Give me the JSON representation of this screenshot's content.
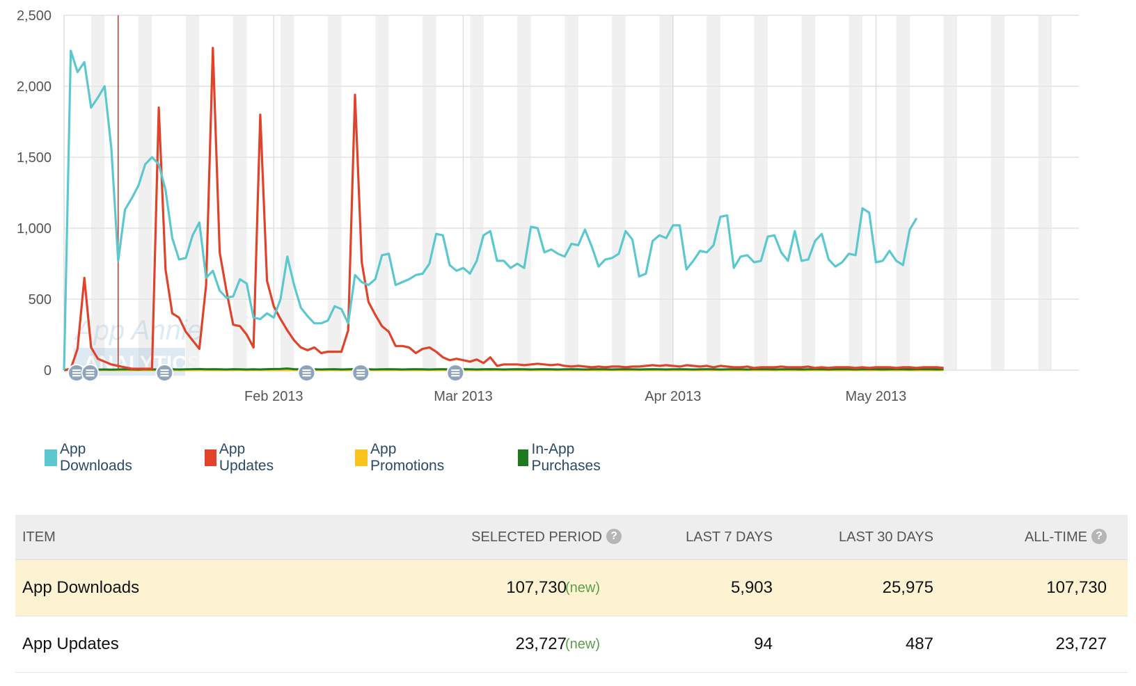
{
  "chart_data": {
    "type": "line",
    "x_start": "2013-01-01",
    "x_end": "2013-05-31",
    "ylim": [
      0,
      2500
    ],
    "yticks": [
      0,
      500,
      1000,
      1500,
      2000,
      2500
    ],
    "ytick_labels": [
      "0",
      "500",
      "1,000",
      "1,500",
      "2,000",
      "2,500"
    ],
    "xtick_labels": [
      {
        "date": "2013-02-01",
        "label": "Feb 2013"
      },
      {
        "date": "2013-03-01",
        "label": "Mar 2013"
      },
      {
        "date": "2013-04-01",
        "label": "Apr 2013"
      },
      {
        "date": "2013-05-01",
        "label": "May 2013"
      }
    ],
    "grid": true,
    "weekend_bands": true,
    "marker_line_date": "2013-01-09",
    "annotation_dates": [
      "2013-01-01",
      "2013-01-03",
      "2013-01-14",
      "2013-02-04",
      "2013-02-12",
      "2013-02-26"
    ],
    "watermark": [
      "App Annie",
      "ANALYTICS"
    ],
    "series": [
      {
        "name": "App Downloads",
        "color": "#5bc8d0",
        "values": [
          0,
          2250,
          2100,
          2170,
          1850,
          1920,
          2000,
          1560,
          770,
          1130,
          1210,
          1300,
          1450,
          1500,
          1450,
          1270,
          930,
          780,
          790,
          950,
          1040,
          650,
          700,
          560,
          510,
          520,
          640,
          610,
          370,
          360,
          400,
          370,
          500,
          800,
          600,
          440,
          380,
          330,
          330,
          350,
          450,
          430,
          330,
          670,
          620,
          600,
          640,
          810,
          820,
          600,
          620,
          640,
          670,
          680,
          750,
          960,
          950,
          740,
          700,
          720,
          680,
          770,
          950,
          980,
          770,
          770,
          720,
          750,
          720,
          1010,
          1000,
          830,
          850,
          820,
          800,
          890,
          880,
          990,
          870,
          730,
          780,
          790,
          820,
          980,
          920,
          660,
          680,
          910,
          950,
          930,
          1020,
          1020,
          710,
          770,
          840,
          830,
          880,
          1080,
          1090,
          720,
          800,
          810,
          760,
          770,
          940,
          950,
          830,
          770,
          980,
          770,
          780,
          910,
          960,
          780,
          730,
          760,
          820,
          810,
          1140,
          1110,
          760,
          770,
          840,
          770,
          740,
          990,
          1070
        ]
      },
      {
        "name": "App Updates",
        "color": "#e0432a",
        "values": [
          0,
          10,
          150,
          650,
          160,
          80,
          60,
          40,
          30,
          20,
          10,
          10,
          10,
          10,
          1850,
          710,
          400,
          370,
          270,
          210,
          150,
          600,
          2270,
          830,
          560,
          320,
          310,
          250,
          160,
          1800,
          630,
          450,
          360,
          280,
          210,
          160,
          140,
          160,
          120,
          130,
          130,
          130,
          280,
          1940,
          760,
          480,
          390,
          310,
          270,
          170,
          170,
          160,
          120,
          150,
          160,
          130,
          90,
          70,
          80,
          70,
          60,
          75,
          50,
          90,
          30,
          40,
          40,
          40,
          35,
          40,
          45,
          40,
          35,
          40,
          30,
          25,
          30,
          25,
          20,
          25,
          20,
          25,
          25,
          20,
          25,
          25,
          30,
          35,
          30,
          35,
          30,
          25,
          35,
          30,
          25,
          30,
          20,
          30,
          25,
          20,
          20,
          25,
          15,
          20,
          20,
          20,
          25,
          20,
          20,
          20,
          25,
          15,
          20,
          15,
          20,
          20,
          20,
          15,
          20,
          15,
          20,
          20,
          20,
          15,
          20,
          20,
          15,
          20,
          20,
          20,
          15
        ]
      },
      {
        "name": "App Promotions",
        "color": "#fcc21e",
        "values": [
          0,
          0,
          0,
          0,
          0,
          0,
          0,
          0,
          0,
          0,
          0,
          0,
          0,
          0,
          0,
          0,
          0,
          0,
          0,
          0,
          0,
          0,
          0,
          0,
          0,
          0,
          0,
          0,
          0,
          0,
          0,
          0,
          0,
          0,
          0,
          0,
          0,
          0,
          0,
          0,
          0,
          0,
          0,
          0,
          0,
          0,
          0,
          0,
          0,
          0,
          0,
          0,
          0,
          0,
          0,
          0,
          0,
          0,
          0,
          0,
          0,
          0,
          0,
          0,
          0,
          0,
          0,
          0,
          0,
          0,
          0,
          0,
          0,
          0,
          0,
          0,
          0,
          0,
          0,
          0,
          0,
          0,
          0,
          0,
          0,
          0,
          0,
          0,
          0,
          0,
          0,
          0,
          0,
          0,
          0,
          0,
          0,
          0,
          0,
          0,
          0,
          0,
          0,
          0,
          0,
          0,
          0,
          0,
          0,
          0,
          0,
          0,
          0,
          0,
          0,
          0,
          0,
          0,
          0,
          0,
          0,
          0,
          0,
          0,
          0,
          0,
          0,
          0,
          0,
          0,
          0
        ]
      },
      {
        "name": "In-App Purchases",
        "color": "#1f7a1f",
        "values": [
          0,
          5,
          4,
          6,
          5,
          4,
          5,
          4,
          5,
          6,
          5,
          4,
          6,
          5,
          5,
          7,
          6,
          5,
          6,
          7,
          8,
          6,
          7,
          6,
          5,
          7,
          6,
          5,
          6,
          5,
          7,
          8,
          9,
          12,
          7,
          6,
          5,
          6,
          5,
          6,
          7,
          5,
          6,
          8,
          7,
          6,
          5,
          6,
          7,
          6,
          5,
          6,
          7,
          6,
          5,
          6,
          7,
          5,
          6,
          7,
          6,
          5,
          6,
          7,
          6,
          5,
          6,
          7,
          6,
          5,
          6,
          7,
          6,
          5,
          6,
          7,
          6,
          5,
          6,
          7,
          6,
          5,
          6,
          7,
          6,
          5,
          6,
          7,
          6,
          5,
          6,
          7,
          6,
          5,
          6,
          7,
          6,
          5,
          6,
          7,
          6,
          5,
          6,
          7,
          6,
          5,
          6,
          7,
          6,
          5,
          6,
          7,
          6,
          5,
          6,
          7,
          6,
          5,
          6,
          7,
          6,
          5,
          6,
          7,
          6,
          5,
          6,
          7,
          6,
          5,
          6
        ]
      }
    ]
  },
  "legend": [
    {
      "label": "App Downloads",
      "color": "#5bc8d0"
    },
    {
      "label": "App Updates",
      "color": "#e0432a"
    },
    {
      "label": "App Promotions",
      "color": "#fcc21e"
    },
    {
      "label": "In-App Purchases",
      "color": "#1f7a1f"
    }
  ],
  "table": {
    "headers": {
      "item": "ITEM",
      "selected_period": "SELECTED PERIOD",
      "last7": "LAST 7 DAYS",
      "last30": "LAST 30 DAYS",
      "alltime": "ALL-TIME",
      "help": "?"
    },
    "rows": [
      {
        "item": "App Downloads",
        "selected": "107,730",
        "change": "(new)",
        "last7": "5,903",
        "last30": "25,975",
        "alltime": "107,730"
      },
      {
        "item": "App Updates",
        "selected": "23,727",
        "change": "(new)",
        "last7": "94",
        "last30": "487",
        "alltime": "23,727"
      }
    ]
  }
}
